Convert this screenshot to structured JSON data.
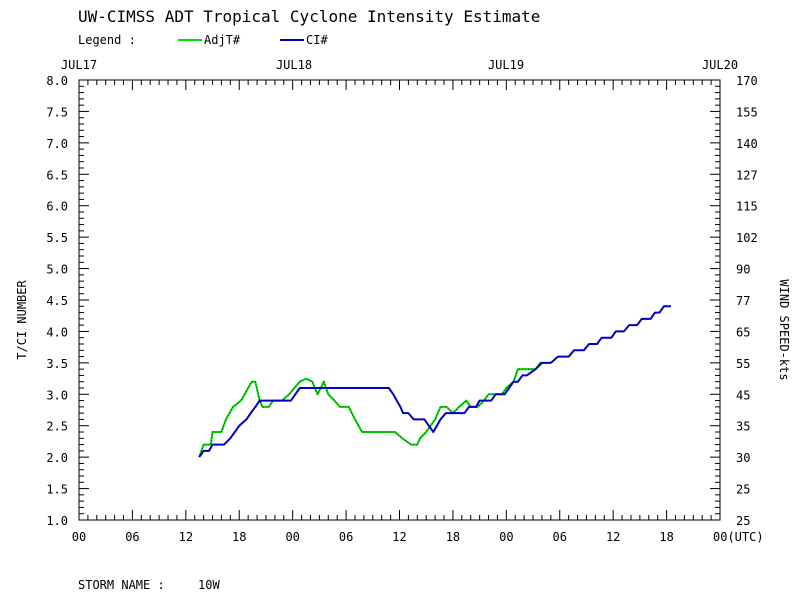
{
  "chart_data": {
    "type": "line",
    "title": "UW-CIMSS ADT Tropical Cyclone Intensity Estimate",
    "legend": {
      "label": "Legend :",
      "placement": "top-left",
      "entries": [
        {
          "name": "AdjT#",
          "color": "#00e000"
        },
        {
          "name": "CI#",
          "color": "#0000c0"
        }
      ]
    },
    "top_dates": [
      "JUL17",
      "JUL18",
      "JUL19",
      "JUL20"
    ],
    "x_ticks": [
      "00",
      "06",
      "12",
      "18",
      "00",
      "06",
      "12",
      "18",
      "00",
      "06",
      "12",
      "18",
      "00(UTC)"
    ],
    "x_range_hours": [
      0,
      72
    ],
    "y_left": {
      "label": "T/CI NUMBER",
      "ticks": [
        "8.0",
        "7.5",
        "7.0",
        "6.5",
        "6.0",
        "5.5",
        "5.0",
        "4.5",
        "4.0",
        "3.5",
        "3.0",
        "2.5",
        "2.0",
        "1.5",
        "1.0"
      ],
      "range": [
        1.0,
        8.0
      ]
    },
    "y_right": {
      "label": "WIND SPEED-kts",
      "ticks": [
        "170",
        "155",
        "140",
        "127",
        "115",
        "102",
        "90",
        "77",
        "65",
        "55",
        "45",
        "35",
        "30",
        "25",
        "25"
      ]
    },
    "grid": false,
    "series": [
      {
        "name": "AdjT#",
        "color": "#00e000",
        "points": [
          [
            13.5,
            2.0
          ],
          [
            14,
            2.2
          ],
          [
            14.8,
            2.2
          ],
          [
            15,
            2.4
          ],
          [
            16,
            2.4
          ],
          [
            16.5,
            2.6
          ],
          [
            17.3,
            2.8
          ],
          [
            18.2,
            2.9
          ],
          [
            19,
            3.1
          ],
          [
            19.4,
            3.2
          ],
          [
            19.8,
            3.2
          ],
          [
            20.3,
            2.9
          ],
          [
            20.6,
            2.8
          ],
          [
            21.3,
            2.8
          ],
          [
            21.8,
            2.9
          ],
          [
            22.8,
            2.9
          ],
          [
            23.6,
            3.0
          ],
          [
            24.2,
            3.1
          ],
          [
            24.8,
            3.2
          ],
          [
            25.5,
            3.25
          ],
          [
            26.2,
            3.2
          ],
          [
            26.8,
            3.0
          ],
          [
            27.5,
            3.2
          ],
          [
            28,
            3.0
          ],
          [
            28.7,
            2.9
          ],
          [
            29.3,
            2.8
          ],
          [
            30.3,
            2.8
          ],
          [
            31,
            2.6
          ],
          [
            31.8,
            2.4
          ],
          [
            35.5,
            2.4
          ],
          [
            36.3,
            2.3
          ],
          [
            37.3,
            2.2
          ],
          [
            38,
            2.2
          ],
          [
            38.3,
            2.3
          ],
          [
            39,
            2.4
          ],
          [
            39.5,
            2.5
          ],
          [
            40,
            2.6
          ],
          [
            40.6,
            2.8
          ],
          [
            41.3,
            2.8
          ],
          [
            42,
            2.7
          ],
          [
            42.7,
            2.8
          ],
          [
            43.5,
            2.9
          ],
          [
            44,
            2.8
          ],
          [
            44.8,
            2.8
          ],
          [
            45.5,
            2.9
          ],
          [
            46,
            3.0
          ],
          [
            47.5,
            3.0
          ],
          [
            48,
            3.1
          ],
          [
            48.8,
            3.2
          ],
          [
            49.3,
            3.4
          ],
          [
            51.3,
            3.4
          ],
          [
            51.8,
            3.5
          ],
          [
            52.2,
            3.5
          ]
        ]
      },
      {
        "name": "CI#",
        "color": "#0000c0",
        "points": [
          [
            13.5,
            2.0
          ],
          [
            14,
            2.1
          ],
          [
            14.6,
            2.1
          ],
          [
            15,
            2.2
          ],
          [
            16.3,
            2.2
          ],
          [
            17,
            2.3
          ],
          [
            17.5,
            2.4
          ],
          [
            18,
            2.5
          ],
          [
            18.8,
            2.6
          ],
          [
            19.3,
            2.7
          ],
          [
            19.8,
            2.8
          ],
          [
            20.3,
            2.9
          ],
          [
            23.8,
            2.9
          ],
          [
            24.3,
            3.0
          ],
          [
            24.8,
            3.1
          ],
          [
            34.8,
            3.1
          ],
          [
            35.3,
            3.0
          ],
          [
            35.7,
            2.9
          ],
          [
            36.1,
            2.8
          ],
          [
            36.4,
            2.7
          ],
          [
            37,
            2.7
          ],
          [
            37.6,
            2.6
          ],
          [
            38.8,
            2.6
          ],
          [
            39.3,
            2.5
          ],
          [
            39.8,
            2.4
          ],
          [
            40.2,
            2.5
          ],
          [
            40.6,
            2.6
          ],
          [
            41.2,
            2.7
          ],
          [
            43.3,
            2.7
          ],
          [
            43.8,
            2.8
          ],
          [
            44.6,
            2.8
          ],
          [
            45,
            2.9
          ],
          [
            46.3,
            2.9
          ],
          [
            46.8,
            3.0
          ],
          [
            47.8,
            3.0
          ],
          [
            48.3,
            3.1
          ],
          [
            48.8,
            3.2
          ],
          [
            49.3,
            3.2
          ],
          [
            49.8,
            3.3
          ],
          [
            50.3,
            3.3
          ],
          [
            51.3,
            3.4
          ],
          [
            52,
            3.5
          ],
          [
            53,
            3.5
          ],
          [
            53.8,
            3.6
          ],
          [
            55,
            3.6
          ],
          [
            55.6,
            3.7
          ],
          [
            56.7,
            3.7
          ],
          [
            57.3,
            3.8
          ],
          [
            58.2,
            3.8
          ],
          [
            58.7,
            3.9
          ],
          [
            59.8,
            3.9
          ],
          [
            60.3,
            4.0
          ],
          [
            61.2,
            4.0
          ],
          [
            61.8,
            4.1
          ],
          [
            62.7,
            4.1
          ],
          [
            63.2,
            4.2
          ],
          [
            64.2,
            4.2
          ],
          [
            64.7,
            4.3
          ],
          [
            65.2,
            4.3
          ],
          [
            65.7,
            4.4
          ],
          [
            66.5,
            4.4
          ]
        ]
      }
    ]
  },
  "footer": {
    "storm_label": "STORM NAME :",
    "storm_name": "10W"
  }
}
